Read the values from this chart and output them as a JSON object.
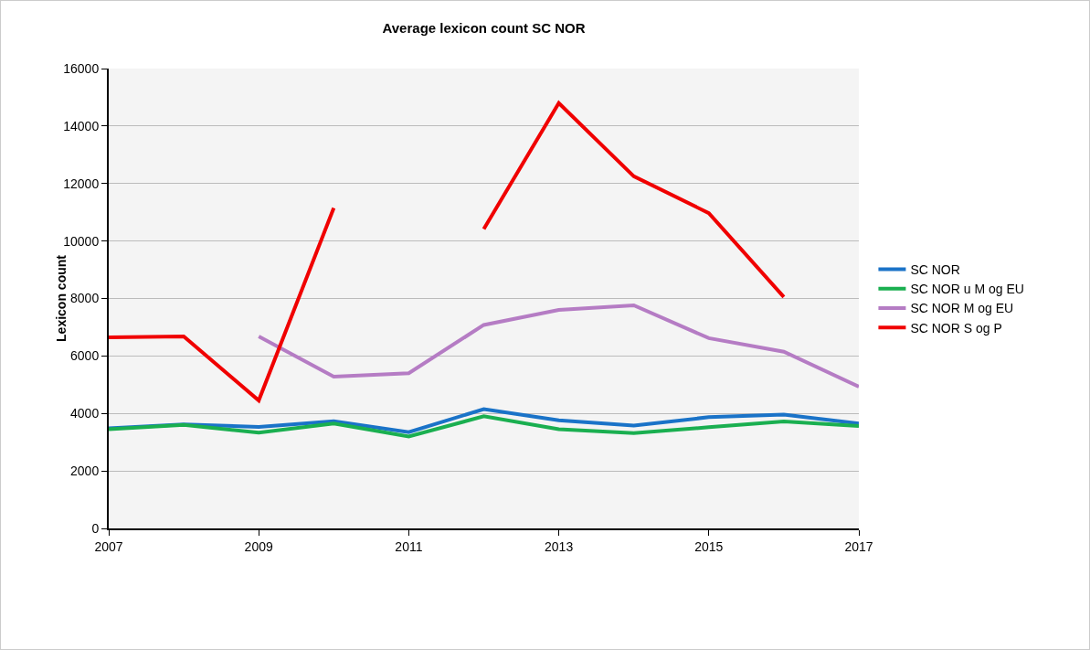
{
  "chart_data": {
    "type": "line",
    "title": "Average lexicon count SC NOR",
    "ylabel": "Lexicon count",
    "x": [
      2007,
      2008,
      2009,
      2010,
      2011,
      2012,
      2013,
      2014,
      2015,
      2016,
      2017
    ],
    "series": [
      {
        "name": "SC NOR",
        "color": "#1a73c8",
        "values": [
          3480,
          3620,
          3530,
          3730,
          3350,
          4150,
          3760,
          3580,
          3870,
          3960,
          3650
        ]
      },
      {
        "name": "SC NOR u M og EU",
        "color": "#1aaf50",
        "values": [
          3450,
          3600,
          3330,
          3650,
          3200,
          3900,
          3450,
          3320,
          3520,
          3720,
          3560
        ]
      },
      {
        "name": "SC NOR M og EU",
        "color": "#b57cc4",
        "values": [
          null,
          null,
          6680,
          5280,
          5400,
          7080,
          7600,
          7760,
          6620,
          6150,
          4930
        ]
      },
      {
        "name": "SC NOR S og P",
        "color": "#f00000",
        "values": [
          6650,
          6680,
          4450,
          11150,
          null,
          10420,
          14800,
          12250,
          10970,
          8050,
          null
        ]
      }
    ],
    "xlim": [
      2007,
      2017
    ],
    "xticks": [
      2007,
      2009,
      2011,
      2013,
      2015,
      2017
    ],
    "ylim": [
      0,
      16000
    ],
    "yticks": [
      0,
      2000,
      4000,
      6000,
      8000,
      10000,
      12000,
      14000,
      16000
    ],
    "grid": "y",
    "legend": "right",
    "marker": "none",
    "line_style": "solid"
  }
}
